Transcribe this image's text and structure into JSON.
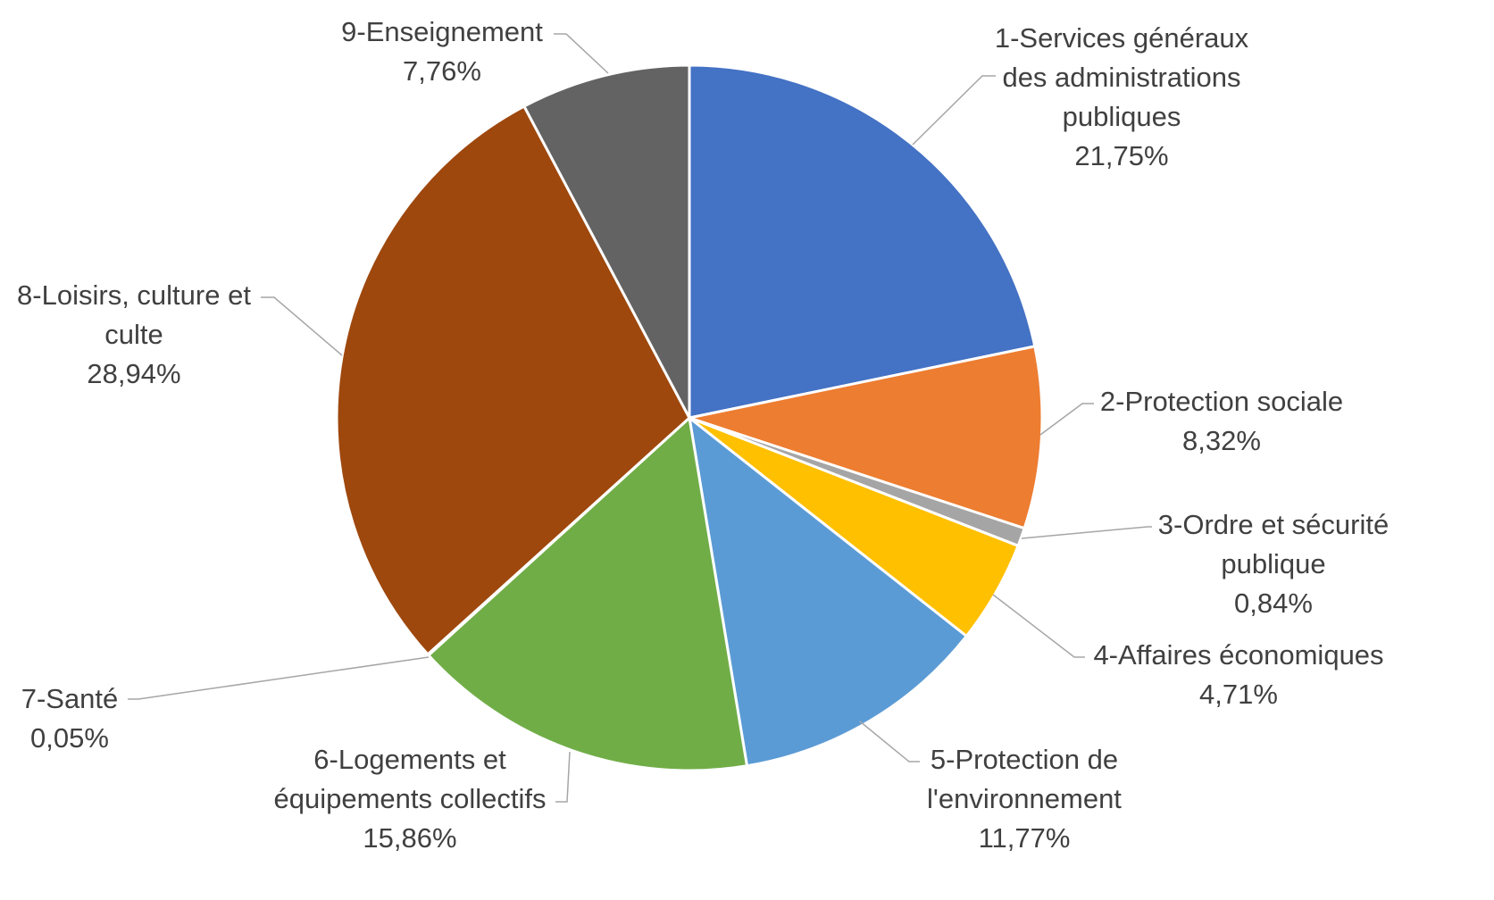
{
  "chart_data": {
    "type": "pie",
    "title": "",
    "slices": [
      {
        "label_lines": [
          "1-Services généraux",
          "des administrations",
          "publiques"
        ],
        "value": 21.75,
        "value_label": "21,75%",
        "color": "#4472C4"
      },
      {
        "label_lines": [
          "2-Protection sociale"
        ],
        "value": 8.32,
        "value_label": "8,32%",
        "color": "#ED7D31"
      },
      {
        "label_lines": [
          "3-Ordre et sécurité",
          "publique"
        ],
        "value": 0.84,
        "value_label": "0,84%",
        "color": "#A5A5A5"
      },
      {
        "label_lines": [
          "4-Affaires économiques"
        ],
        "value": 4.71,
        "value_label": "4,71%",
        "color": "#FFC000"
      },
      {
        "label_lines": [
          "5-Protection de",
          "l'environnement"
        ],
        "value": 11.77,
        "value_label": "11,77%",
        "color": "#5B9BD5"
      },
      {
        "label_lines": [
          "6-Logements et",
          "équipements collectifs"
        ],
        "value": 15.86,
        "value_label": "15,86%",
        "color": "#70AD47"
      },
      {
        "label_lines": [
          "7-Santé"
        ],
        "value": 0.05,
        "value_label": "0,05%",
        "color": "#264478"
      },
      {
        "label_lines": [
          "8-Loisirs, culture et",
          "culte"
        ],
        "value": 28.94,
        "value_label": "28,94%",
        "color": "#9E480E"
      },
      {
        "label_lines": [
          "9-Enseignement"
        ],
        "value": 7.76,
        "value_label": "7,76%",
        "color": "#636363"
      }
    ]
  }
}
